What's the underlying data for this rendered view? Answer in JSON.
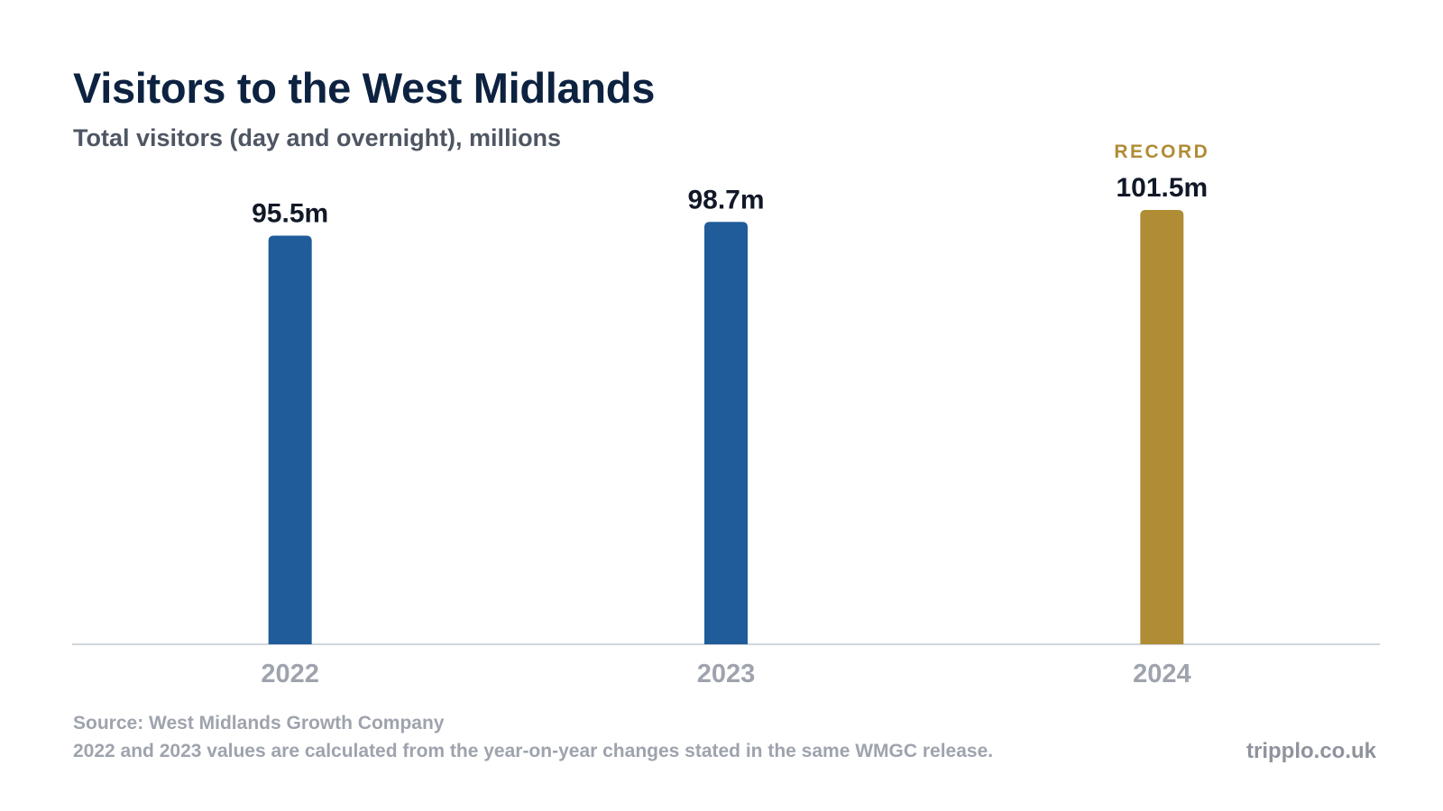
{
  "header": {
    "title": "Visitors to the West Midlands",
    "subtitle": "Total visitors (day and overnight), millions"
  },
  "chart_data": {
    "type": "bar",
    "title": "Visitors to the West Midlands",
    "subtitle": "Total visitors (day and overnight), millions",
    "xlabel": "",
    "ylabel": "",
    "categories": [
      "2022",
      "2023",
      "2024"
    ],
    "values": [
      95.5,
      98.7,
      101.5
    ],
    "value_labels": [
      "95.5m",
      "98.7m",
      "101.5m"
    ],
    "ylim": [
      0,
      101.5
    ],
    "grid": false,
    "legend": "none",
    "highlight": {
      "category": "2024",
      "annotation": "RECORD"
    },
    "colors": {
      "default_bar": "#1f5c99",
      "highlight_bar": "#b08c35",
      "value_label": "#111827",
      "tick_label": "#9ea3ad",
      "axis_line": "#d1d5db",
      "annotation": "#b08c35"
    }
  },
  "footer": {
    "source": "Source: West Midlands Growth Company",
    "note": "2022 and 2023 values are calculated from the year-on-year changes stated in the same WMGC release.",
    "brand": "tripplo.co.uk"
  }
}
